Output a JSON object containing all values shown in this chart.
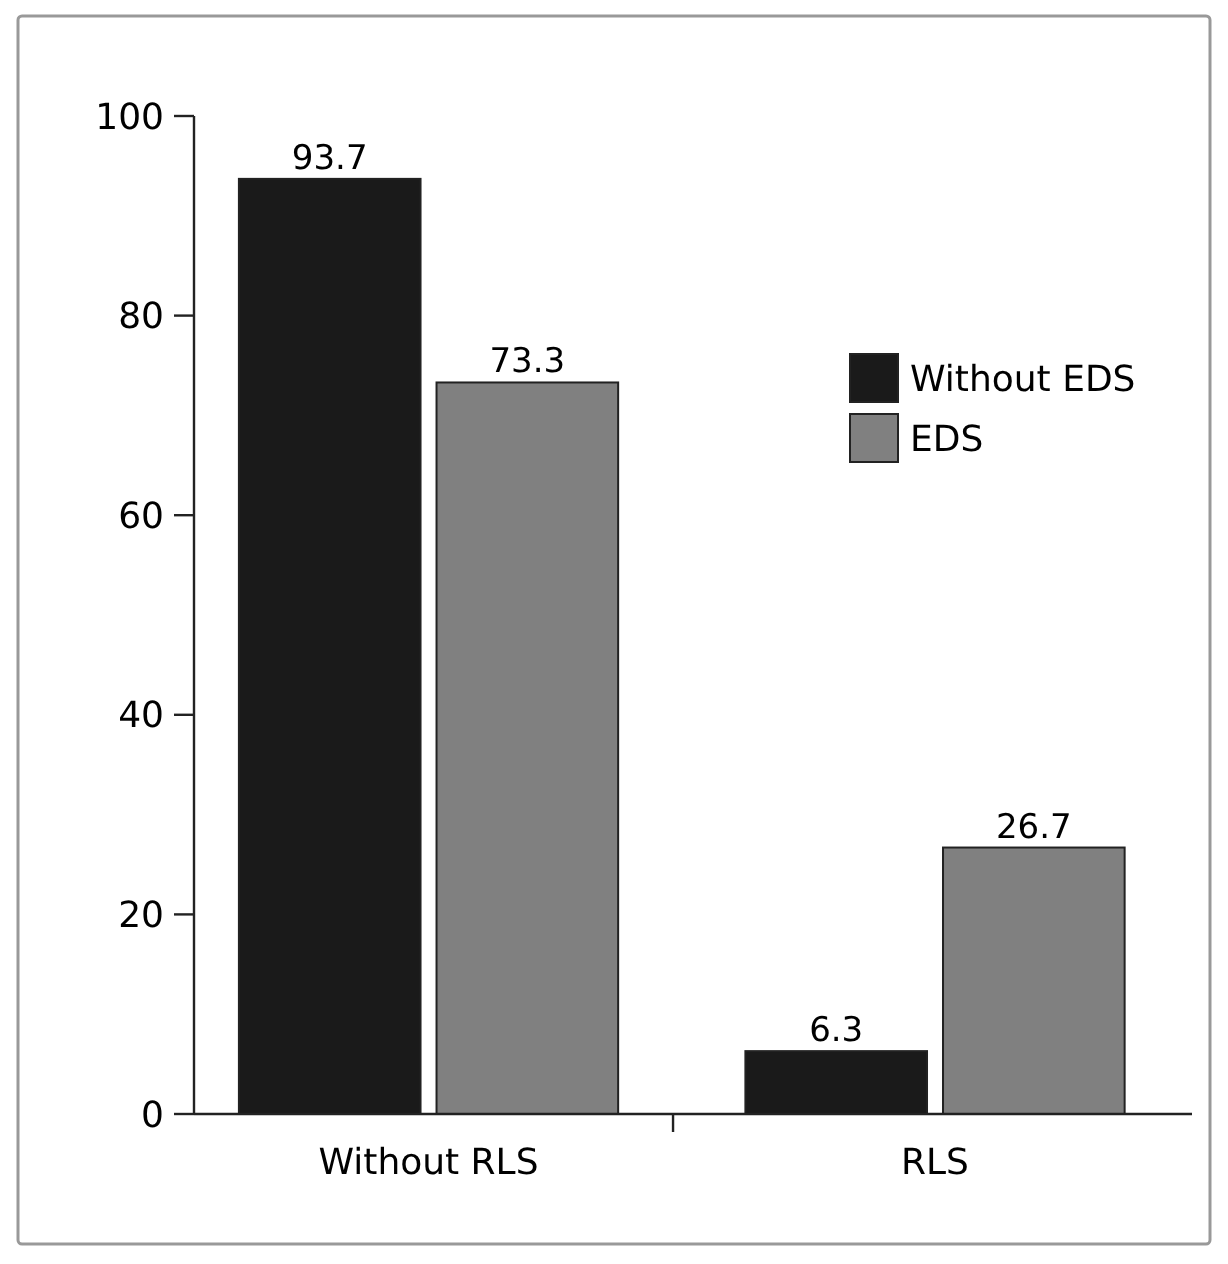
{
  "chart_data": {
    "type": "bar",
    "categories": [
      "Without RLS",
      "RLS"
    ],
    "series": [
      {
        "name": "Without EDS",
        "color": "#1a1a1a",
        "values": [
          93.7,
          6.3
        ]
      },
      {
        "name": "EDS",
        "color": "#808080",
        "values": [
          73.3,
          26.7
        ]
      }
    ],
    "ylim": [
      0,
      100
    ],
    "yticks": [
      0,
      20,
      40,
      60,
      80,
      100
    ],
    "data_labels": true,
    "legend": "right",
    "grid": false
  }
}
